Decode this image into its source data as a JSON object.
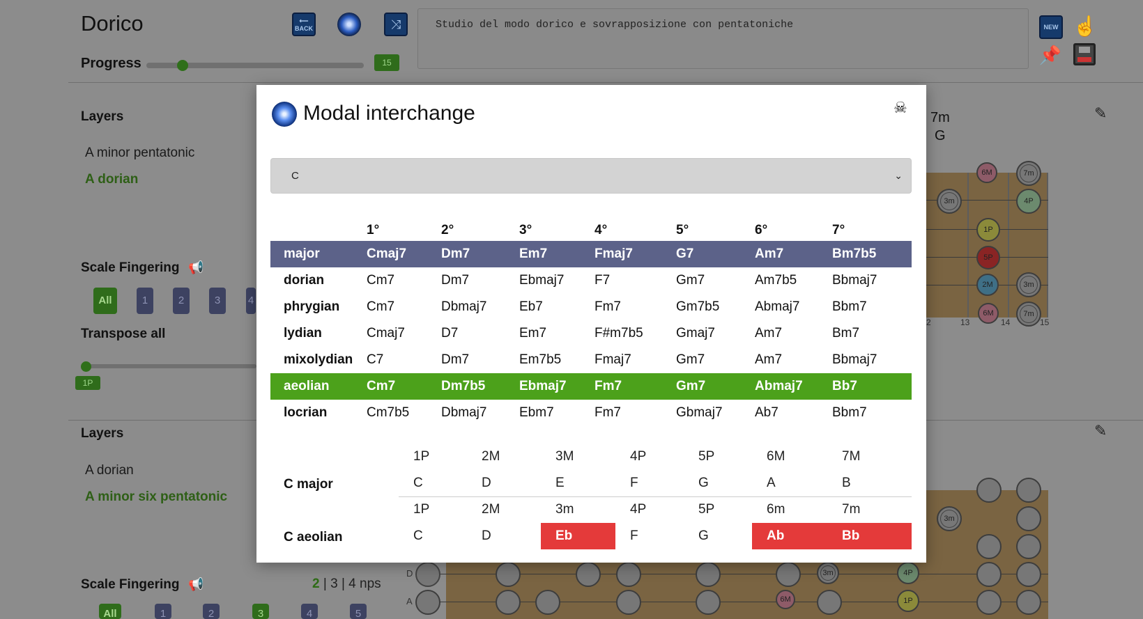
{
  "app": {
    "title": "Dorico",
    "progress_label": "Progress",
    "progress_value": "15",
    "progress_fraction": 0.15,
    "notes": "Studio del modo dorico e sovrapposizione con pentatoniche",
    "icons": {
      "back": "BACK",
      "new": "NEW"
    }
  },
  "panel1": {
    "layers_label": "Layers",
    "layers": [
      "A minor pentatonic",
      "A dorian"
    ],
    "active_layer": "A dorian",
    "scale_fingering_label": "Scale Fingering",
    "fingerings": [
      "All",
      "1",
      "2",
      "3",
      "4"
    ],
    "transpose_label": "Transpose all",
    "transpose_value": "1P",
    "peek_labels": [
      "7m",
      "G"
    ],
    "fret_numbers": [
      "2",
      "13",
      "14",
      "15"
    ],
    "dots": [
      "6M",
      "7m",
      "3m",
      "4P",
      "1P",
      "5P",
      "2M",
      "3m",
      "6M",
      "7m"
    ]
  },
  "panel2": {
    "layers_label": "Layers",
    "layers": [
      "A dorian",
      "A minor six pentatonic"
    ],
    "active_layer": "A minor six pentatonic",
    "scale_fingering_label": "Scale Fingering",
    "nps": {
      "a": "2",
      "b": "3",
      "c": "4",
      "suffix": "nps",
      "sep": "|"
    },
    "fingerings": [
      "All",
      "1",
      "2",
      "3",
      "4",
      "5"
    ],
    "string_labels": [
      "D",
      "A"
    ],
    "dots": [
      "3m",
      "3m",
      "4P",
      "6M",
      "1P"
    ]
  },
  "modal": {
    "title": "Modal interchange",
    "select_value": "C",
    "degrees": [
      "1°",
      "2°",
      "3°",
      "4°",
      "5°",
      "6°",
      "7°"
    ],
    "modes": [
      {
        "name": "major",
        "chords": [
          "Cmaj7",
          "Dm7",
          "Em7",
          "Fmaj7",
          "G7",
          "Am7",
          "Bm7b5"
        ]
      },
      {
        "name": "dorian",
        "chords": [
          "Cm7",
          "Dm7",
          "Ebmaj7",
          "F7",
          "Gm7",
          "Am7b5",
          "Bbmaj7"
        ]
      },
      {
        "name": "phrygian",
        "chords": [
          "Cm7",
          "Dbmaj7",
          "Eb7",
          "Fm7",
          "Gm7b5",
          "Abmaj7",
          "Bbm7"
        ]
      },
      {
        "name": "lydian",
        "chords": [
          "Cmaj7",
          "D7",
          "Em7",
          "F#m7b5",
          "Gmaj7",
          "Am7",
          "Bm7"
        ]
      },
      {
        "name": "mixolydian",
        "chords": [
          "C7",
          "Dm7",
          "Em7b5",
          "Fmaj7",
          "Gm7",
          "Am7",
          "Bbmaj7"
        ]
      },
      {
        "name": "aeolian",
        "chords": [
          "Cm7",
          "Dm7b5",
          "Ebmaj7",
          "Fm7",
          "Gm7",
          "Abmaj7",
          "Bb7"
        ]
      },
      {
        "name": "locrian",
        "chords": [
          "Cm7b5",
          "Dbmaj7",
          "Ebm7",
          "Fm7",
          "Gbmaj7",
          "Ab7",
          "Bbm7"
        ]
      }
    ],
    "compare": [
      {
        "label": "C major",
        "intervals": [
          "1P",
          "2M",
          "3M",
          "4P",
          "5P",
          "6M",
          "7M"
        ],
        "notes": [
          "C",
          "D",
          "E",
          "F",
          "G",
          "A",
          "B"
        ]
      },
      {
        "label": "C aeolian",
        "intervals": [
          "1P",
          "2M",
          "3m",
          "4P",
          "5P",
          "6m",
          "7m"
        ],
        "notes": [
          "C",
          "D",
          "Eb",
          "F",
          "G",
          "Ab",
          "Bb"
        ]
      }
    ],
    "colors": {
      "major_row": "#5c6289",
      "aeolian_row": "#4ca11b",
      "diff_cell": "#e43a3a"
    }
  }
}
